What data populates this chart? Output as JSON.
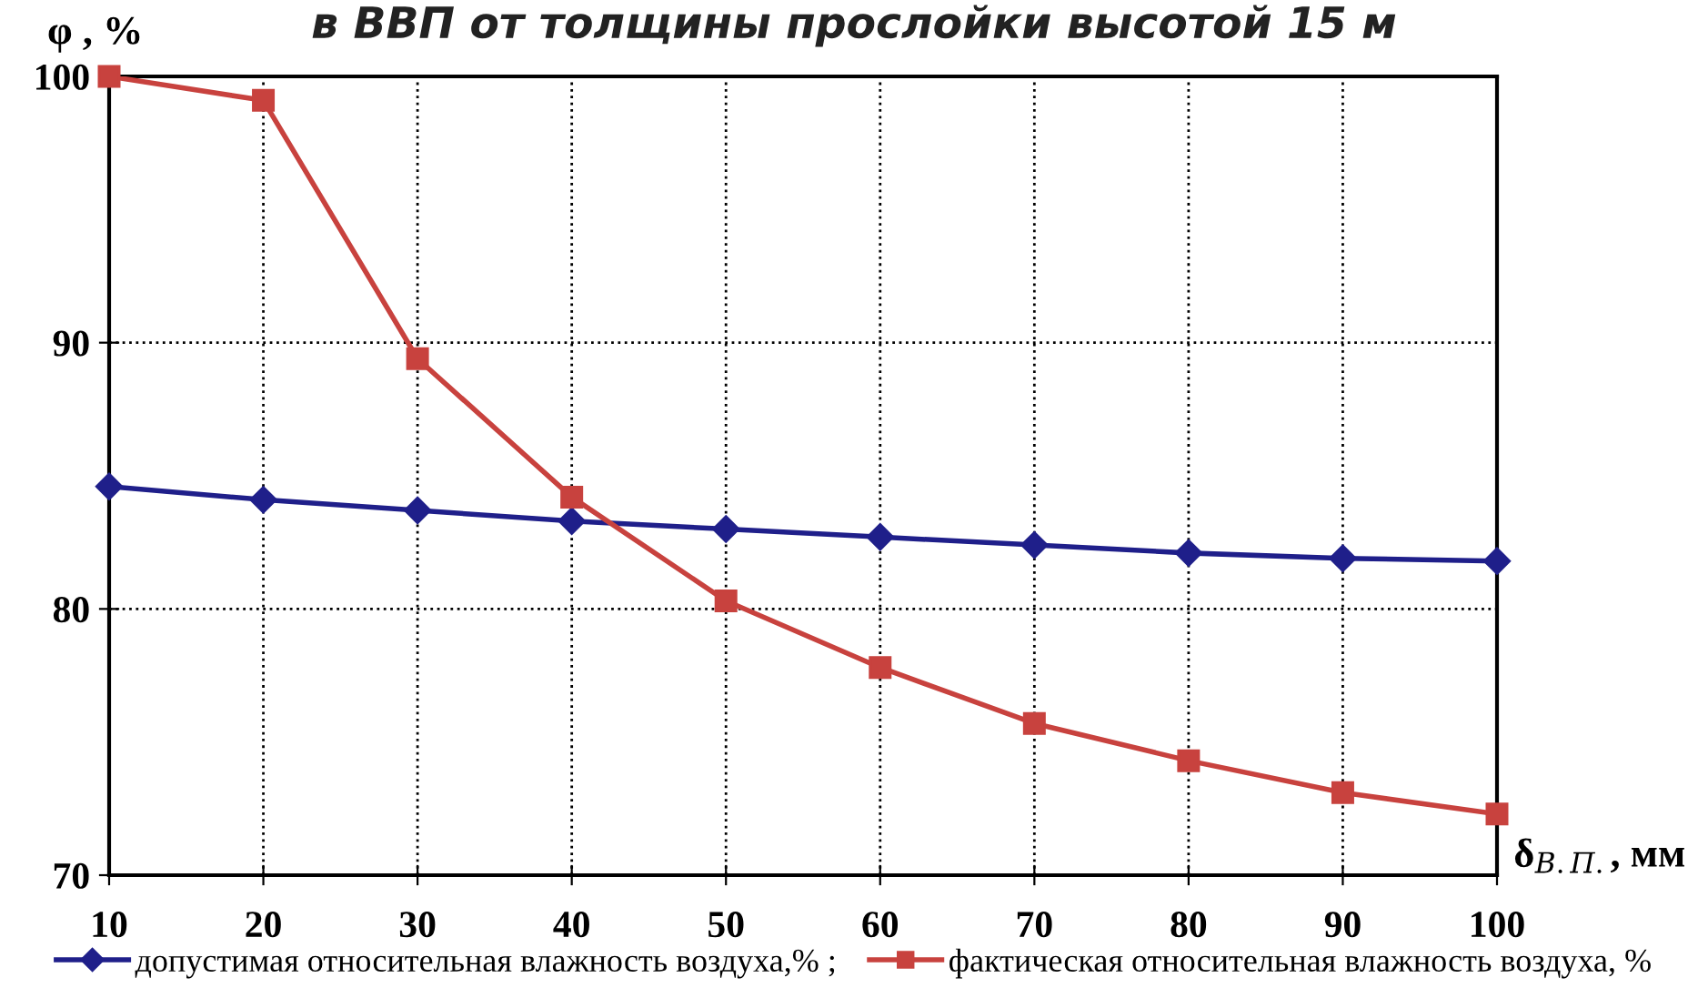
{
  "chart_data": {
    "type": "line",
    "title": "в ВВП от толщины прослойки высотой 15 м",
    "xlabel": "δ$_{В.П.}$, мм",
    "ylabel": "φ , %",
    "x": [
      10,
      20,
      30,
      40,
      50,
      60,
      70,
      80,
      90,
      100
    ],
    "series": [
      {
        "name": "допустимая относительная влажность воздуха,% ;",
        "color": "#1f1f8a",
        "marker": "diamond",
        "values": [
          84.6,
          84.1,
          83.7,
          83.3,
          83.0,
          82.7,
          82.4,
          82.1,
          81.9,
          81.8
        ]
      },
      {
        "name": "фактическая относительная влажность воздуха, %",
        "color": "#c8423e",
        "marker": "square",
        "values": [
          100,
          99.1,
          89.4,
          84.2,
          80.3,
          77.8,
          75.7,
          74.3,
          73.1,
          72.3
        ]
      }
    ],
    "xlim": [
      10,
      100
    ],
    "xticks": [
      10,
      20,
      30,
      40,
      50,
      60,
      70,
      80,
      90,
      100
    ],
    "ylim": [
      70,
      100
    ],
    "yticks": [
      70,
      80,
      90,
      100
    ],
    "grid": true,
    "legend": "bottom",
    "line_style": "solid"
  }
}
